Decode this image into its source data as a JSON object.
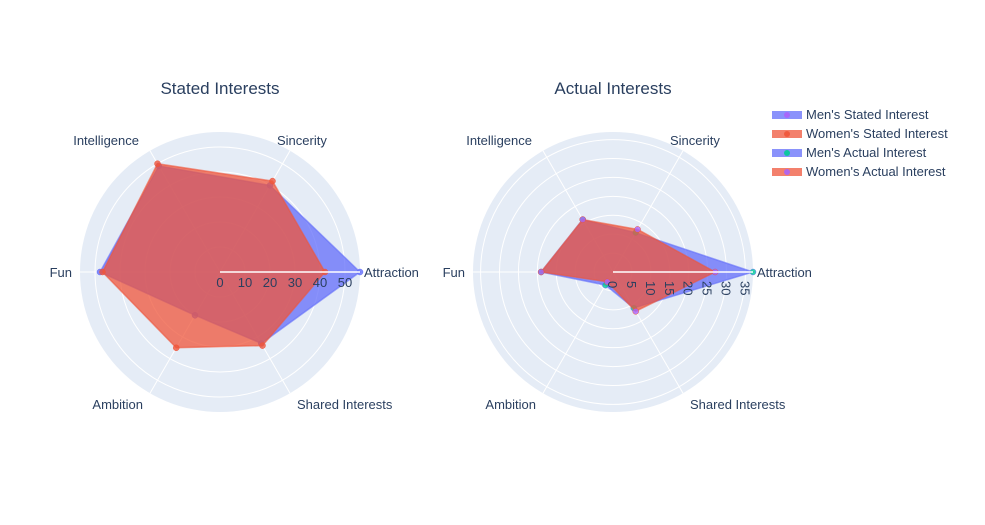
{
  "chart_data": {
    "type": "radar",
    "categories": [
      "Attraction",
      "Sincerity",
      "Intelligence",
      "Fun",
      "Ambition",
      "Shared Interests"
    ],
    "legend": {
      "placement": "top-right",
      "entries": [
        "Men's Stated Interest",
        "Women's Stated Interest",
        "Men's Actual Interest",
        "Women's Actual Interest"
      ]
    },
    "colors": {
      "men": "#636efa",
      "women": "#ef553b",
      "men_actual_marker": "#00cc96",
      "women_actual_marker": "#ab63fa",
      "polar_bg": "#e5ecf6",
      "grid": "#ffffff",
      "text": "#2a3f5f"
    },
    "subplots": [
      {
        "title": "Stated Interests",
        "radial_range": [
          0,
          56
        ],
        "radial_ticks": [
          "0",
          "10",
          "20",
          "30",
          "40",
          "50"
        ],
        "series": [
          {
            "name": "Men's Stated Interest",
            "values": [
              56,
              40,
              49,
              48,
              20,
              33
            ]
          },
          {
            "name": "Women's Stated Interest",
            "values": [
              42,
              42,
              50,
              47,
              35,
              34
            ]
          }
        ]
      },
      {
        "title": "Actual Interests",
        "radial_range": [
          0,
          37
        ],
        "radial_ticks": [
          "0",
          "5",
          "10",
          "15",
          "20",
          "25",
          "30",
          "35"
        ],
        "series": [
          {
            "name": "Men's Actual Interest",
            "values": [
              37,
              12,
              16,
              19,
              4,
              11
            ]
          },
          {
            "name": "Women's Actual Interest",
            "values": [
              27,
              13,
              16,
              19,
              3,
              12
            ]
          }
        ]
      }
    ]
  }
}
